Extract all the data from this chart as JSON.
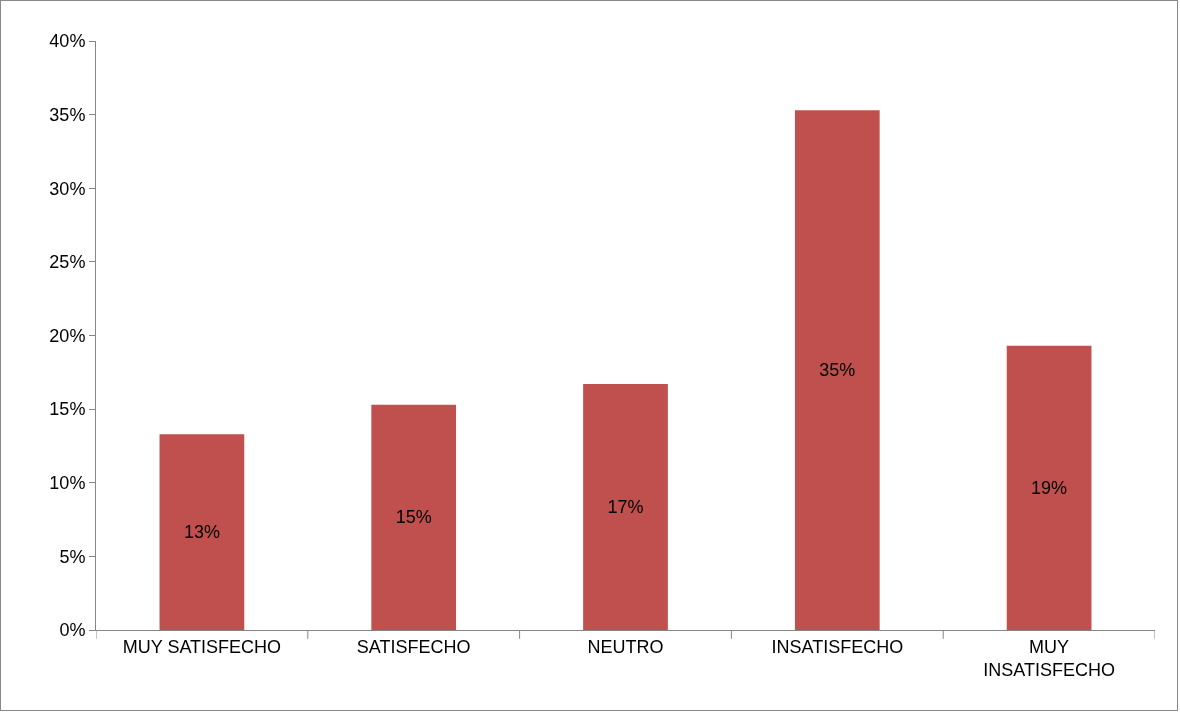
{
  "chart_data": {
    "type": "bar",
    "categories": [
      "MUY SATISFECHO",
      "SATISFECHO",
      "NEUTRO",
      "INSATISFECHO",
      "MUY INSATISFECHO"
    ],
    "values": [
      13.3,
      15.3,
      16.7,
      35.3,
      19.3
    ],
    "value_labels": [
      "13%",
      "15%",
      "17%",
      "35%",
      "19%"
    ],
    "color": "#c0504d",
    "ylim": [
      0,
      40
    ],
    "yticks": [
      {
        "value": 0,
        "label": "0%"
      },
      {
        "value": 5,
        "label": "5%"
      },
      {
        "value": 10,
        "label": "10%"
      },
      {
        "value": 15,
        "label": "15%"
      },
      {
        "value": 20,
        "label": "20%"
      },
      {
        "value": 25,
        "label": "25%"
      },
      {
        "value": 30,
        "label": "30%"
      },
      {
        "value": 35,
        "label": "35%"
      },
      {
        "value": 40,
        "label": "40%"
      }
    ],
    "grid": false
  }
}
